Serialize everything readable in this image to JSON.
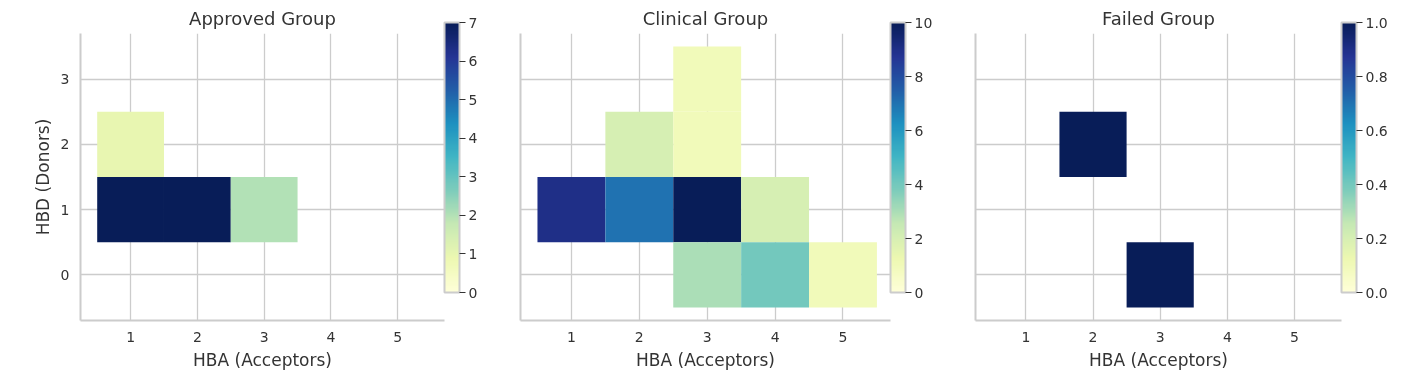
{
  "chart_data": [
    {
      "type": "heatmap",
      "title": "Approved Group",
      "xlabel": "HBA (Acceptors)",
      "ylabel": "HBD (Donors)",
      "categories": [
        "1",
        "2",
        "3",
        "4",
        "5"
      ],
      "y_categories": [
        "3",
        "2",
        "1",
        "0"
      ],
      "cells": [
        [
          null,
          null,
          null,
          null,
          null
        ],
        [
          1,
          null,
          null,
          null,
          null
        ],
        [
          7,
          7,
          2,
          null,
          null
        ],
        [
          null,
          null,
          null,
          null,
          null
        ]
      ],
      "clim": [
        0,
        7
      ],
      "cticks": [
        0,
        1,
        2,
        3,
        4,
        5,
        6,
        7
      ],
      "grid": true
    },
    {
      "type": "heatmap",
      "title": "Clinical Group",
      "xlabel": "HBA (Acceptors)",
      "categories": [
        "1",
        "2",
        "3",
        "4",
        "5"
      ],
      "y_categories": [
        "3",
        "2",
        "1",
        "0"
      ],
      "cells": [
        [
          null,
          null,
          1,
          null,
          null
        ],
        [
          null,
          2,
          1,
          null,
          null
        ],
        [
          9,
          7,
          10,
          2,
          null
        ],
        [
          null,
          null,
          3,
          4,
          1
        ]
      ],
      "clim": [
        0,
        10
      ],
      "cticks": [
        0,
        2,
        4,
        6,
        8,
        10
      ],
      "grid": true,
      "tick_labels": "x"
    },
    {
      "type": "heatmap",
      "title": "Failed Group",
      "xlabel": "HBA (Acceptors)",
      "categories": [
        "1",
        "2",
        "3",
        "4",
        "5"
      ],
      "y_categories": [
        "3",
        "2",
        "1",
        "0"
      ],
      "cells": [
        [
          null,
          null,
          null,
          null,
          null
        ],
        [
          null,
          1,
          null,
          null,
          null
        ],
        [
          null,
          null,
          null,
          null,
          null
        ],
        [
          null,
          null,
          1,
          null,
          null
        ]
      ],
      "clim": [
        0,
        1
      ],
      "cticks": [
        {
          "value": 0,
          "label": "0.0"
        },
        {
          "value": 0.2,
          "label": "0.2"
        },
        {
          "value": 0.4,
          "label": "0.4"
        },
        {
          "value": 0.6,
          "label": "0.6"
        },
        {
          "value": 0.8,
          "label": "0.8"
        },
        {
          "value": 1,
          "label": "1.0"
        }
      ],
      "grid": true,
      "tick_labels": "x"
    }
  ]
}
